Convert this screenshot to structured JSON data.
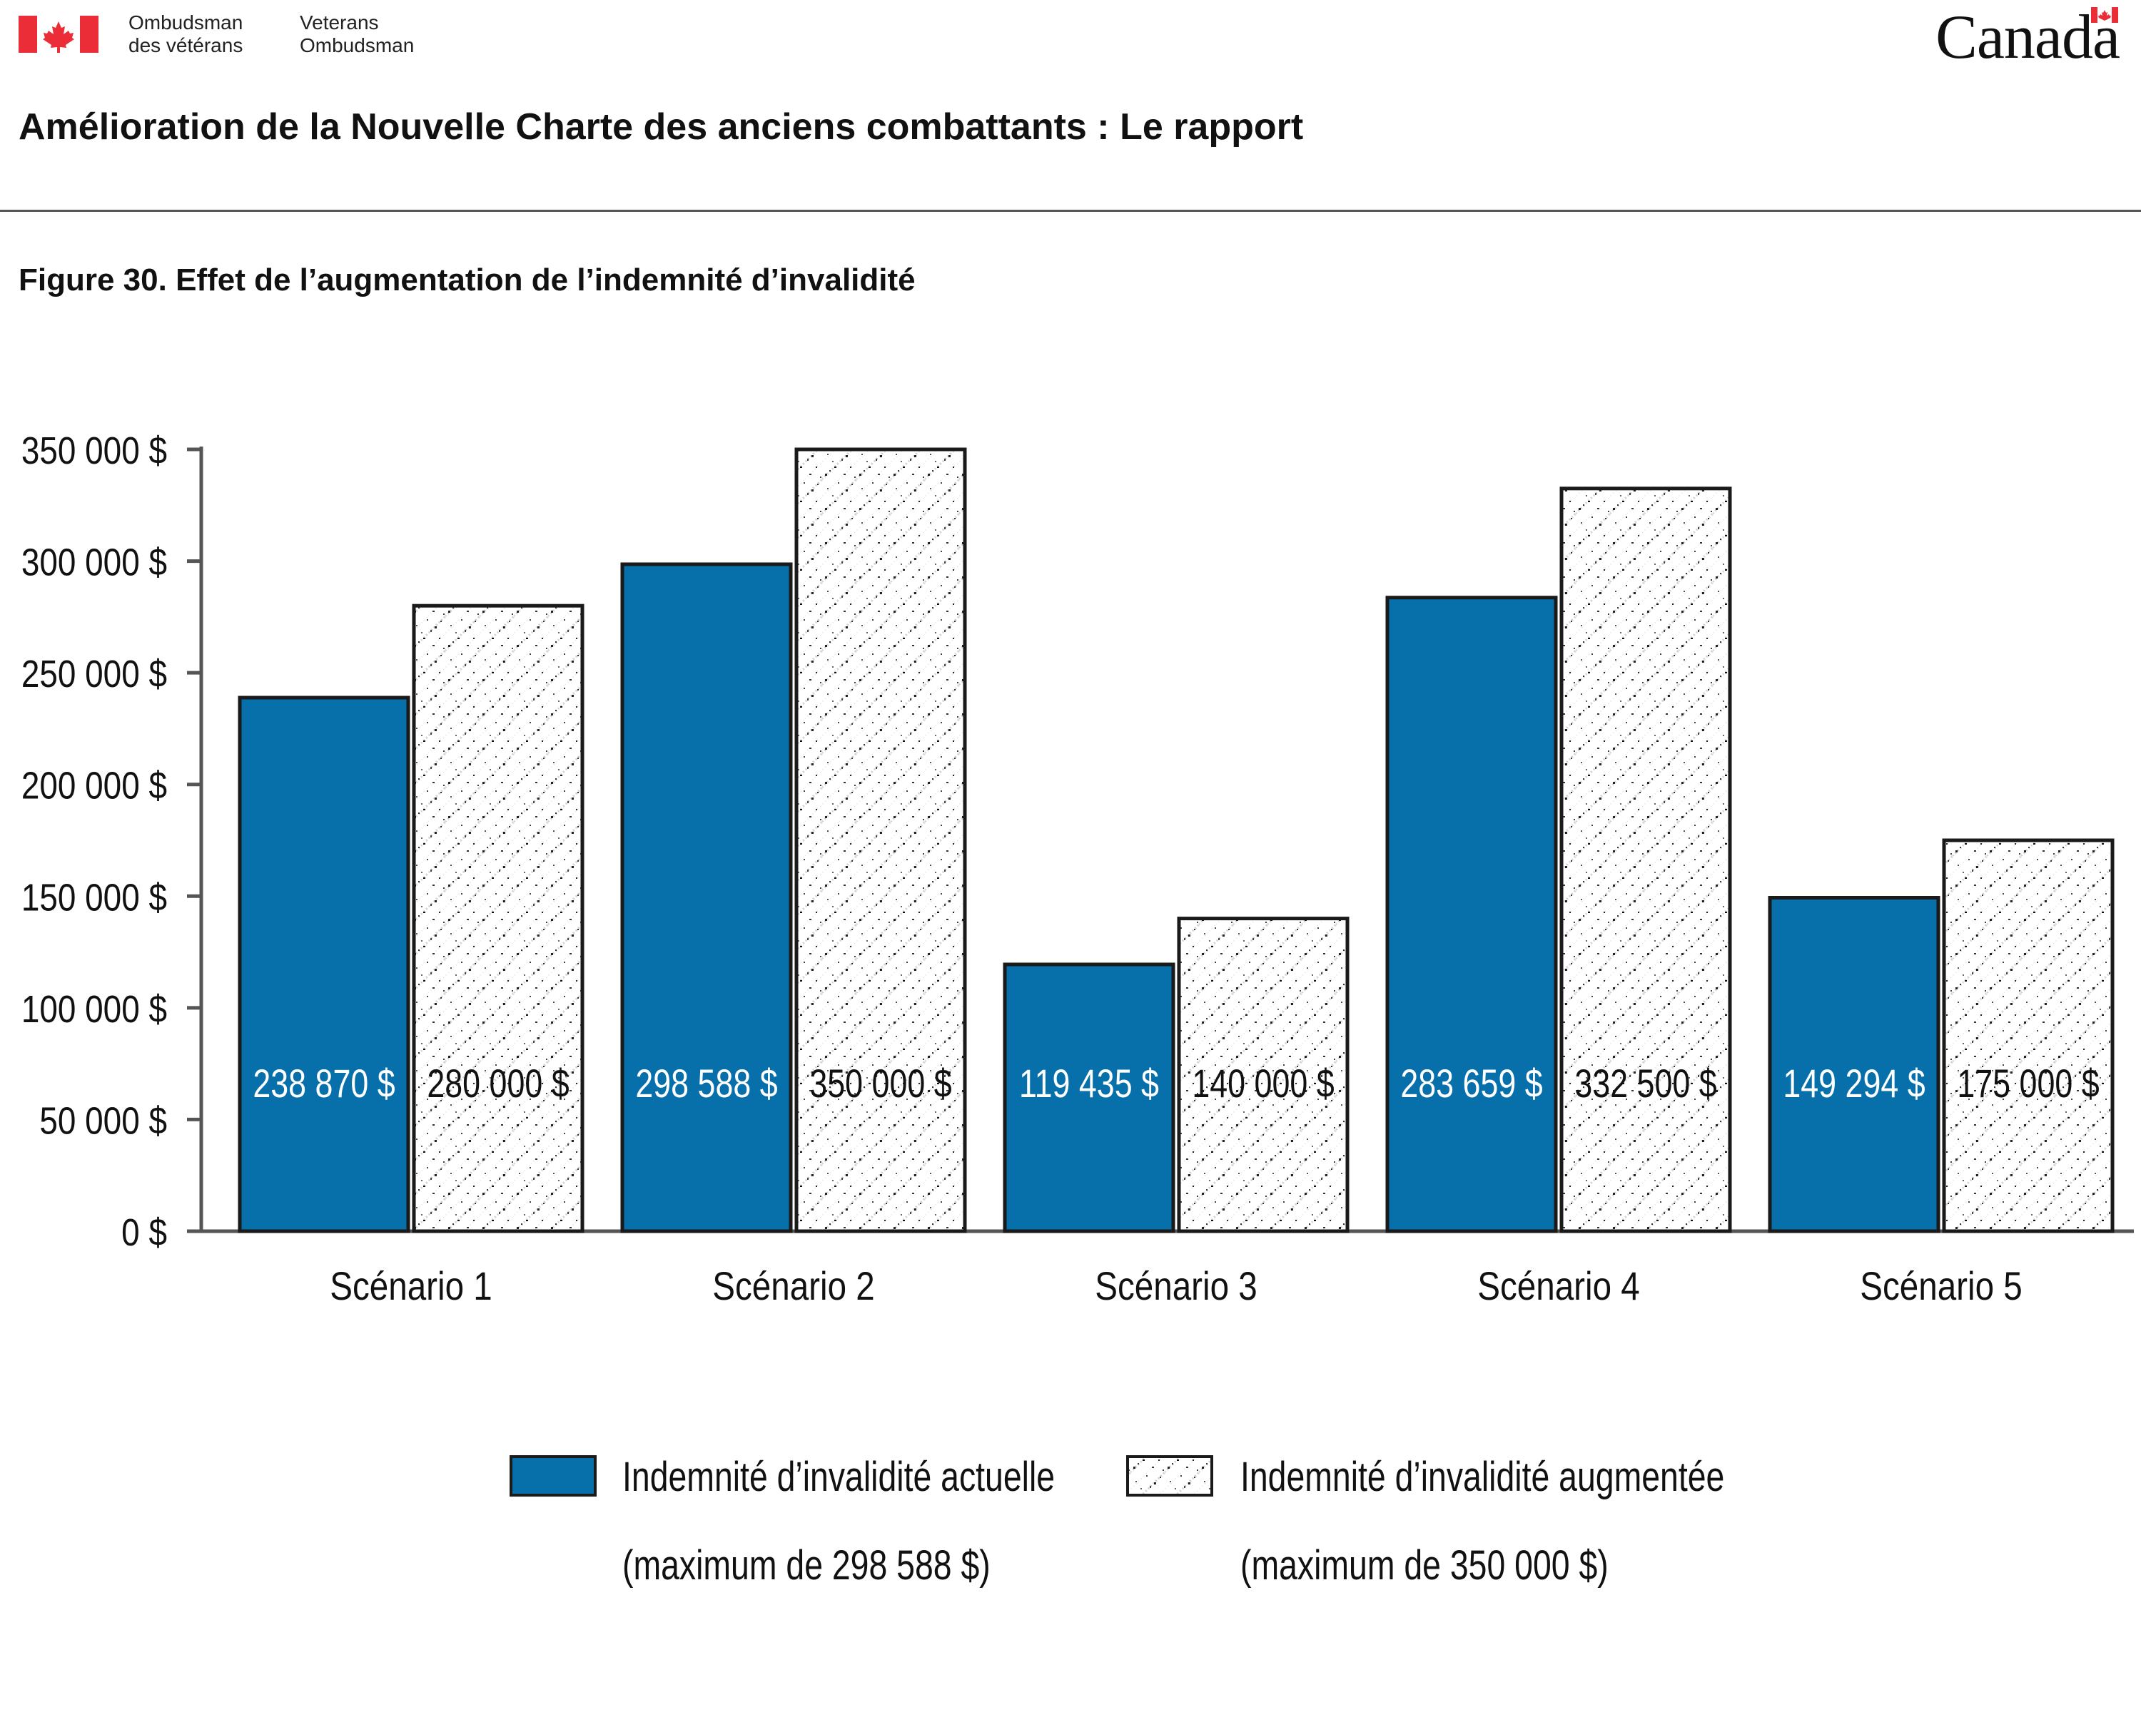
{
  "header": {
    "org_fr_line1": "Ombudsman",
    "org_fr_line2": "des vétérans",
    "org_en_line1": "Veterans",
    "org_en_line2": "Ombudsman",
    "wordmark": "Canada",
    "report_title": "Amélioration de la Nouvelle Charte des anciens combattants : Le rapport"
  },
  "figure_title": "Figure 30. Effet de l’augmentation de l’indemnité d’invalidité",
  "colors": {
    "series_current": "#0770ab",
    "bar_outline": "#1a1a1a",
    "axis": "#555555",
    "flag_red": "#eb2d37"
  },
  "icons": {
    "flag": "canada-flag-icon",
    "wordmark_flag": "canada-wordmark-flag-icon"
  },
  "chart_data": {
    "type": "bar",
    "categories": [
      "Scénario 1",
      "Scénario 2",
      "Scénario 3",
      "Scénario 4",
      "Scénario 5"
    ],
    "series": [
      {
        "name": "Indemnité d’invalidité actuelle",
        "name_line2": "(maximum de 298 588 $)",
        "pattern": "solid",
        "values": [
          238870,
          298588,
          119435,
          283659,
          149294
        ],
        "labels": [
          "238 870 $",
          "298 588 $",
          "119 435 $",
          "283 659 $",
          "149 294 $"
        ]
      },
      {
        "name": "Indemnité d’invalidité augmentée",
        "name_line2": "(maximum de 350 000 $)",
        "pattern": "speckled",
        "values": [
          280000,
          350000,
          140000,
          332500,
          175000
        ],
        "labels": [
          "280 000 $",
          "350 000 $",
          "140 000 $",
          "332 500 $",
          "175 000 $"
        ]
      }
    ],
    "ylim": [
      0,
      350000
    ],
    "yticks": [
      0,
      50000,
      100000,
      150000,
      200000,
      250000,
      300000,
      350000
    ],
    "ytick_labels": [
      "0 $",
      "50 000 $",
      "100 000 $",
      "150 000 $",
      "200 000 $",
      "250 000 $",
      "300 000 $",
      "350 000 $"
    ],
    "xlabel": "",
    "ylabel": "",
    "grid": false,
    "legend_position": "bottom"
  }
}
